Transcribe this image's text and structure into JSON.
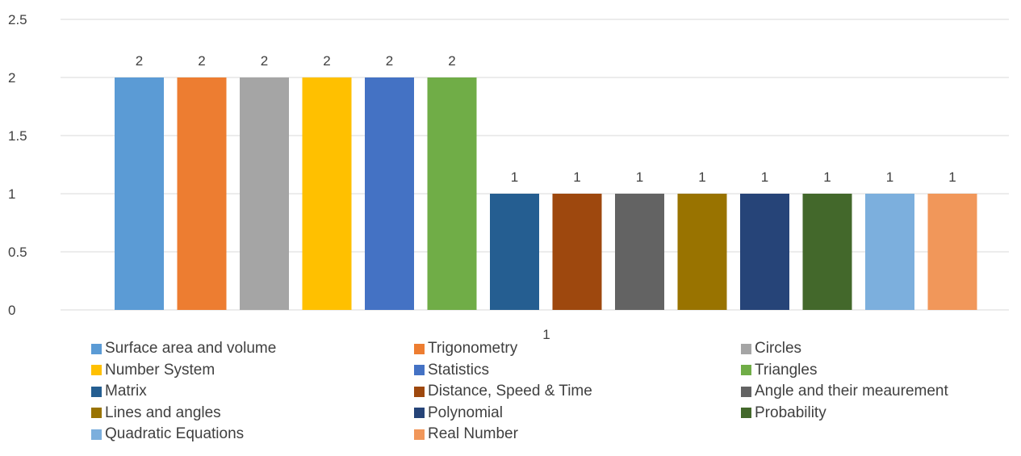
{
  "chart_data": {
    "type": "bar",
    "title": "",
    "xlabel": "",
    "ylabel": "",
    "ylim": [
      0,
      2.5
    ],
    "yticks": [
      "0",
      "0.5",
      "1",
      "1.5",
      "2",
      "2.5"
    ],
    "grid": true,
    "legend_position": "bottom",
    "x_axis_label_text": "1",
    "series": [
      {
        "name": "Surface area and volume",
        "value": 2,
        "label": "2",
        "color": "#5B9BD5"
      },
      {
        "name": "Trigonometry",
        "value": 2,
        "label": "2",
        "color": "#ED7D31"
      },
      {
        "name": "Circles",
        "value": 2,
        "label": "2",
        "color": "#A5A5A5"
      },
      {
        "name": "Number System",
        "value": 2,
        "label": "2",
        "color": "#FFC000"
      },
      {
        "name": "Statistics",
        "value": 2,
        "label": "2",
        "color": "#4472C4"
      },
      {
        "name": "Triangles",
        "value": 2,
        "label": "2",
        "color": "#70AD47"
      },
      {
        "name": "Matrix",
        "value": 1,
        "label": "1",
        "color": "#255E91"
      },
      {
        "name": "Distance, Speed & Time",
        "value": 1,
        "label": "1",
        "color": "#9E480E"
      },
      {
        "name": "Angle and their meaurement",
        "value": 1,
        "label": "1",
        "color": "#636363"
      },
      {
        "name": "Lines and angles",
        "value": 1,
        "label": "1",
        "color": "#997300"
      },
      {
        "name": "Polynomial",
        "value": 1,
        "label": "1",
        "color": "#264478"
      },
      {
        "name": "Probability",
        "value": 1,
        "label": "1",
        "color": "#43682B"
      },
      {
        "name": "Quadratic Equations",
        "value": 1,
        "label": "1",
        "color": "#7CAFDD"
      },
      {
        "name": "Real Number",
        "value": 1,
        "label": "1",
        "color": "#F1975A"
      }
    ]
  }
}
